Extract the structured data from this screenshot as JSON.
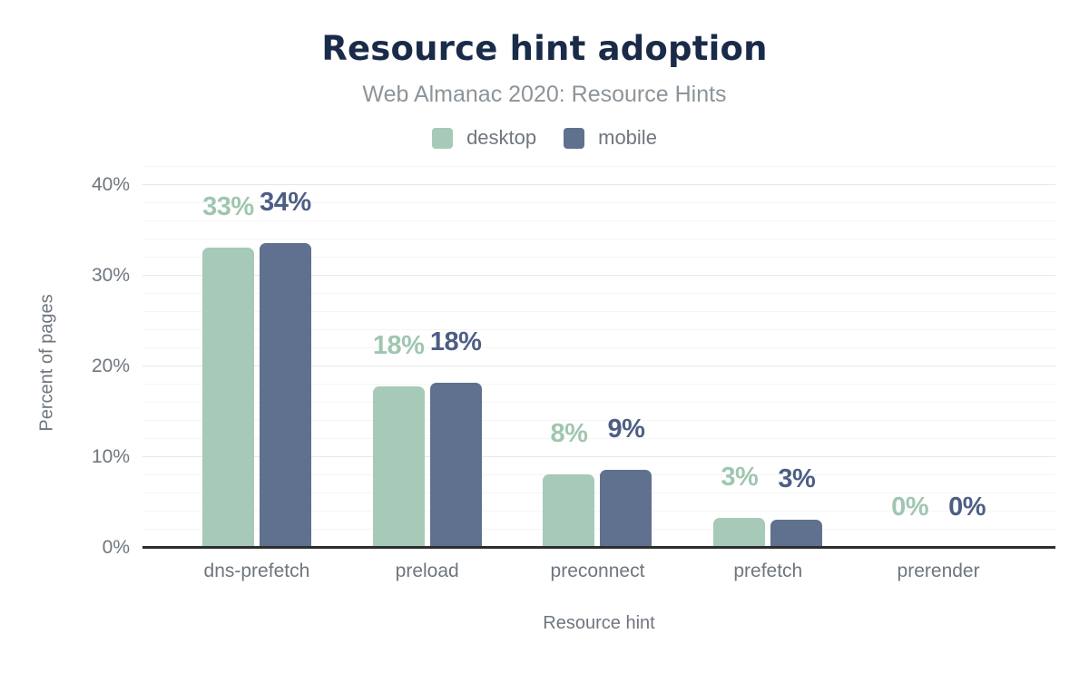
{
  "chart_data": {
    "type": "bar",
    "title": "Resource hint adoption",
    "subtitle": "Web Almanac 2020: Resource Hints",
    "xlabel": "Resource hint",
    "ylabel": "Percent of pages",
    "categories": [
      "dns-prefetch",
      "preload",
      "preconnect",
      "prefetch",
      "prerender"
    ],
    "series": [
      {
        "name": "desktop",
        "color": "#a6cab7",
        "label_color": "#9fc6b0",
        "values": [
          33.1,
          17.8,
          8.1,
          3.3,
          0
        ],
        "labels": [
          "33%",
          "18%",
          "8%",
          "3%",
          "0%"
        ]
      },
      {
        "name": "mobile",
        "color": "#5f718f",
        "label_color": "#4d5e85",
        "values": [
          33.6,
          18.2,
          8.6,
          3.1,
          0
        ],
        "labels": [
          "34%",
          "18%",
          "9%",
          "3%",
          "0%"
        ]
      }
    ],
    "ylim": [
      0,
      42
    ],
    "yticks": [
      {
        "value": 0,
        "label": "0%"
      },
      {
        "value": 10,
        "label": "10%"
      },
      {
        "value": 20,
        "label": "20%"
      },
      {
        "value": 30,
        "label": "30%"
      },
      {
        "value": 40,
        "label": "40%"
      }
    ],
    "grid": {
      "minor_step": 2,
      "major_step": 10,
      "grid_on": true
    },
    "legend_position": "top-center"
  },
  "palette": {
    "background": "#ffffff",
    "title_color": "#1a2b49",
    "subtitle_color": "#8d9499",
    "axis_text": "#6f767d",
    "grid_major": "#e8e8e8",
    "grid_minor": "#f5f5f5",
    "axis_line": "#2e2e2e"
  }
}
